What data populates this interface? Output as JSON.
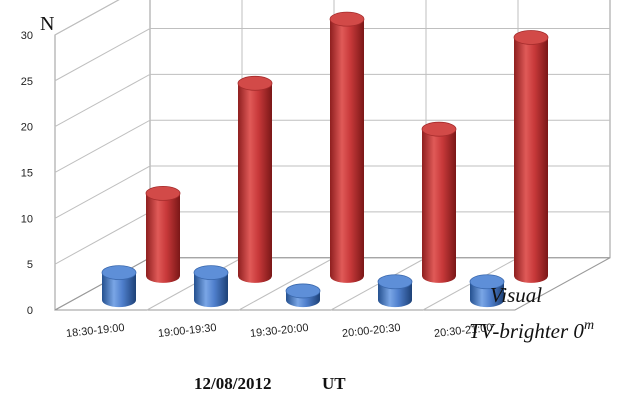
{
  "chart_data": {
    "type": "bar",
    "style": "3d-cylinder",
    "ylabel": "N",
    "xlabel": "12/08/2012",
    "xlabel_unit": "UT",
    "ylim": [
      0,
      30
    ],
    "y_ticks": [
      "0",
      "5",
      "10",
      "15",
      "20",
      "25",
      "30"
    ],
    "grid": true,
    "categories": [
      "18:30-19:00",
      "19:00-19:30",
      "19:30-20:00",
      "20:00-20:30",
      "20:30-21:00"
    ],
    "series": [
      {
        "name": "TV-brighter 0",
        "name_sup": "m",
        "color": "#4f7fcc",
        "values": [
          3,
          3,
          1,
          2,
          2
        ]
      },
      {
        "name": "Visual",
        "color": "#c8393a",
        "values": [
          9,
          21,
          28,
          16,
          26
        ]
      }
    ]
  }
}
